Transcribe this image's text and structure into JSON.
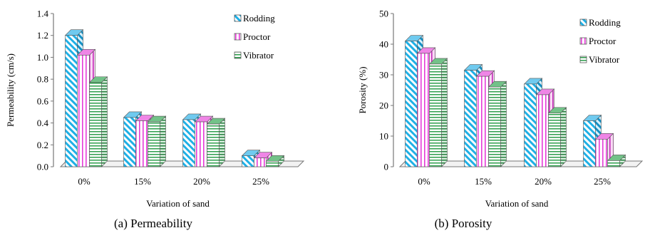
{
  "chart_data": [
    {
      "type": "bar",
      "caption": "(a) Permeability",
      "categories": [
        "0%",
        "15%",
        "20%",
        "25%"
      ],
      "series": [
        {
          "name": "Rodding",
          "values": [
            1.2,
            0.45,
            0.43,
            0.1
          ]
        },
        {
          "name": "Proctor",
          "values": [
            1.02,
            0.42,
            0.41,
            0.08
          ]
        },
        {
          "name": "Vibrator",
          "values": [
            0.77,
            0.41,
            0.39,
            0.05
          ]
        }
      ],
      "xlabel": "Variation of sand",
      "ylabel": "Permeability (cm/s)",
      "ylim": [
        0,
        1.4
      ],
      "yticks": [
        "0.0",
        "0.2",
        "0.4",
        "0.6",
        "0.8",
        "1.0",
        "1.2",
        "1.4"
      ],
      "grid": false,
      "legend": "top-right"
    },
    {
      "type": "bar",
      "caption": "(b) Porosity",
      "categories": [
        "0%",
        "15%",
        "20%",
        "25%"
      ],
      "series": [
        {
          "name": "Rodding",
          "values": [
            41,
            31.5,
            27,
            15
          ]
        },
        {
          "name": "Proctor",
          "values": [
            37,
            29.5,
            23.5,
            9
          ]
        },
        {
          "name": "Vibrator",
          "values": [
            33.5,
            26,
            17.5,
            2
          ]
        }
      ],
      "xlabel": "Variation of sand",
      "ylabel": "Porosity (%)",
      "ylim": [
        0,
        50
      ],
      "yticks": [
        "0",
        "10",
        "20",
        "30",
        "40",
        "50"
      ],
      "grid": false,
      "legend": "top-right"
    }
  ],
  "colors": {
    "Rodding": "#1fb0e6",
    "Proctor": "#e63bd8",
    "Vibrator": "#2e9e4c",
    "axis": "#777777"
  }
}
